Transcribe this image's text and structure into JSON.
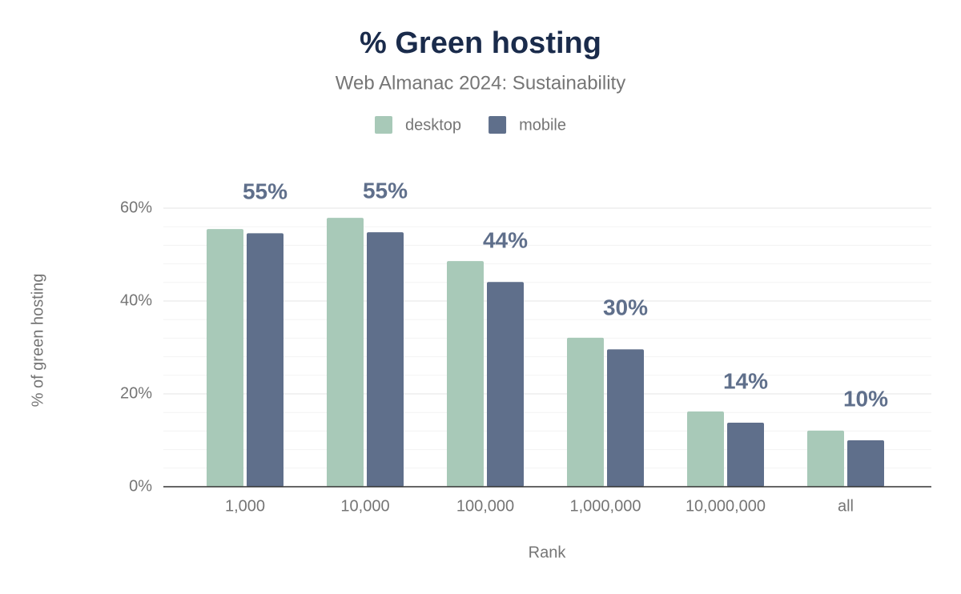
{
  "chart_data": {
    "type": "bar",
    "title": "% Green hosting",
    "subtitle": "Web Almanac 2024: Sustainability",
    "x_label": "Rank",
    "y_label": "% of green hosting",
    "categories": [
      "1,000",
      "10,000",
      "100,000",
      "1,000,000",
      "10,000,000",
      "all"
    ],
    "series": [
      {
        "name": "desktop",
        "color": "#a8c9b8",
        "values": [
          55.5,
          57.9,
          48.6,
          32.1,
          16.2,
          12.1
        ]
      },
      {
        "name": "mobile",
        "color": "#5f6f8b",
        "values": [
          54.6,
          54.8,
          44.1,
          29.6,
          13.8,
          10.0
        ],
        "value_labels": [
          "55%",
          "55%",
          "44%",
          "30%",
          "14%",
          "10%"
        ]
      }
    ],
    "ylim": [
      0,
      60
    ],
    "yticks": [
      {
        "value": 0,
        "label": "0%"
      },
      {
        "value": 20,
        "label": "20%"
      },
      {
        "value": 40,
        "label": "40%"
      },
      {
        "value": 60,
        "label": "60%"
      }
    ],
    "minor_yticks": [
      4,
      8,
      12,
      16,
      24,
      28,
      32,
      36,
      44,
      48,
      52,
      56
    ],
    "grid": true,
    "legend": "top"
  }
}
